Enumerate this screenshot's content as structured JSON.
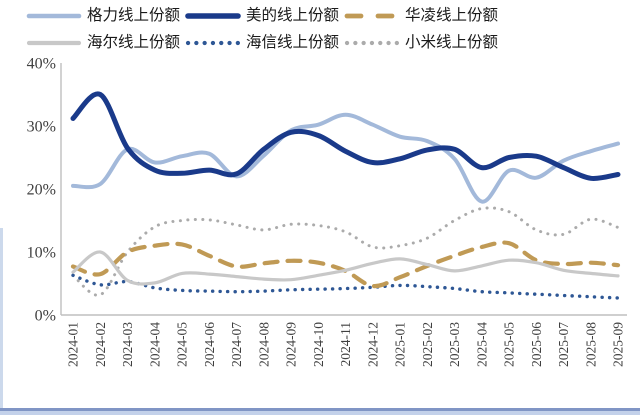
{
  "chart_data": {
    "type": "line",
    "title": "",
    "xlabel": "",
    "ylabel": "",
    "ylim": [
      0,
      40
    ],
    "yticks": [
      {
        "value": 0,
        "label": "0%"
      },
      {
        "value": 10,
        "label": "10%"
      },
      {
        "value": 20,
        "label": "20%"
      },
      {
        "value": 30,
        "label": "30%"
      },
      {
        "value": 40,
        "label": "40%"
      }
    ],
    "grid": false,
    "legend_position": "top",
    "x": [
      "2024-01",
      "2024-02",
      "2024-03",
      "2024-04",
      "2024-05",
      "2024-06",
      "2024-07",
      "2024-08",
      "2024-09",
      "2024-10",
      "2024-11",
      "2024-12",
      "2025-01",
      "2025-02",
      "2025-03",
      "2025-04",
      "2025-05",
      "2025-06",
      "2025-07",
      "2025-08",
      "2025-09"
    ],
    "series": [
      {
        "key": "gree",
        "name": "格力线上份额",
        "color": "#a3b9da",
        "style": "solid",
        "width": 4,
        "values": [
          20.5,
          20.8,
          26.3,
          24.2,
          25.2,
          25.6,
          22.0,
          25.3,
          29.3,
          30.2,
          31.8,
          30.2,
          28.3,
          27.6,
          24.8,
          18.0,
          22.9,
          21.8,
          24.5,
          26.0,
          27.2
        ]
      },
      {
        "key": "midea",
        "name": "美的线上份额",
        "color": "#1a3a8a",
        "style": "solid",
        "width": 5,
        "values": [
          31.2,
          35.0,
          26.5,
          23.0,
          22.5,
          23.0,
          22.4,
          26.3,
          29.0,
          28.5,
          26.0,
          24.2,
          24.8,
          26.2,
          26.3,
          23.4,
          25.0,
          25.2,
          23.4,
          21.7,
          22.3
        ]
      },
      {
        "key": "hualing",
        "name": "华凌线上份额",
        "color": "#c09a55",
        "style": "dashed",
        "width": 4.2,
        "values": [
          7.7,
          6.5,
          10.0,
          11.0,
          11.2,
          9.4,
          7.7,
          8.2,
          8.6,
          8.3,
          7.0,
          4.6,
          6.0,
          7.8,
          9.4,
          10.8,
          11.4,
          8.7,
          8.1,
          8.3,
          7.9
        ]
      },
      {
        "key": "haier",
        "name": "海尔线上份额",
        "color": "#c8c8c8",
        "style": "solid",
        "width": 3.2,
        "values": [
          6.8,
          10.0,
          5.5,
          5.1,
          6.6,
          6.5,
          6.1,
          5.7,
          5.6,
          6.3,
          7.1,
          8.2,
          8.9,
          8.0,
          7.0,
          7.8,
          8.7,
          8.3,
          7.1,
          6.6,
          6.2
        ]
      },
      {
        "key": "hisense",
        "name": "海信线上份额",
        "color": "#2e5795",
        "style": "dotted",
        "width": 3.4,
        "values": [
          6.3,
          4.8,
          5.3,
          4.3,
          3.9,
          3.8,
          3.7,
          3.8,
          4.0,
          4.1,
          4.2,
          4.4,
          4.7,
          4.5,
          4.2,
          3.7,
          3.5,
          3.3,
          3.1,
          2.9,
          2.7
        ]
      },
      {
        "key": "xiaomi",
        "name": "小米线上份额",
        "color": "#ababab",
        "style": "dotted",
        "width": 3,
        "values": [
          6.3,
          3.2,
          10.0,
          14.0,
          15.0,
          15.1,
          14.3,
          13.5,
          14.4,
          14.2,
          13.2,
          10.8,
          11.0,
          12.2,
          15.0,
          16.9,
          16.4,
          13.5,
          12.8,
          15.2,
          13.9
        ]
      }
    ],
    "legend_rows": [
      [
        "gree",
        "midea",
        "hualing"
      ],
      [
        "haier",
        "hisense",
        "xiaomi"
      ]
    ],
    "colors": {
      "axis": "#bfbfbf",
      "tick_text": "#404040",
      "bottom_band_dark": "#8095c5",
      "bottom_band_light": "#c3d1ea",
      "left_edge_strip": "#ccd9ec"
    }
  }
}
